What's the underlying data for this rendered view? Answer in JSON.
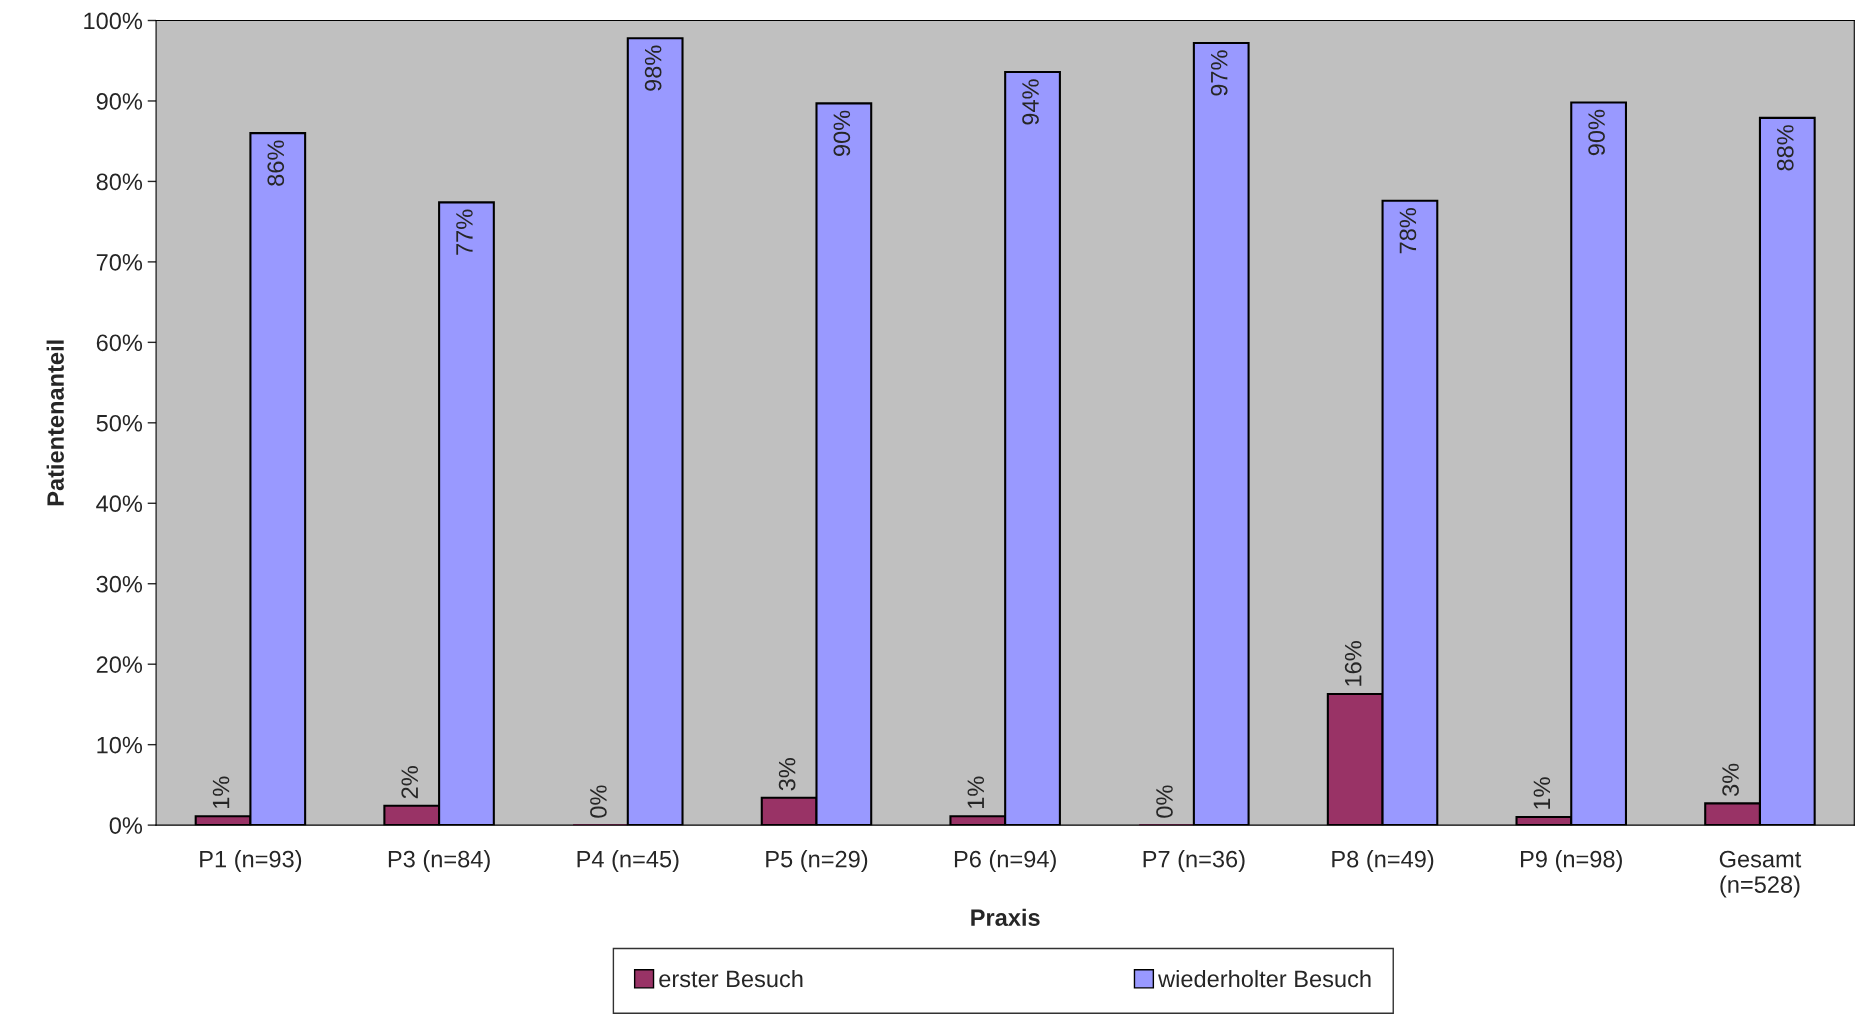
{
  "chart_data": {
    "type": "bar",
    "xlabel": "Praxis",
    "ylabel": "Patientenanteil",
    "categories": [
      "P1 (n=93)",
      "P3 (n=84)",
      "P4 (n=45)",
      "P5 (n=29)",
      "P6 (n=94)",
      "P7 (n=36)",
      "P8 (n=49)",
      "P9 (n=98)",
      "Gesamt\n(n=528)"
    ],
    "series": [
      {
        "name": "erster Besuch",
        "color": "#993366",
        "values": [
          1.1,
          2.4,
          0,
          3.4,
          1.1,
          0,
          16.3,
          1.0,
          2.7
        ],
        "value_labels": [
          "1%",
          "2%",
          "0%",
          "3%",
          "1%",
          "0%",
          "16%",
          "1%",
          "3%"
        ]
      },
      {
        "name": "wiederholter Besuch",
        "color": "#9999ff",
        "values": [
          86.0,
          77.4,
          97.8,
          89.7,
          93.6,
          97.2,
          77.6,
          89.8,
          87.9
        ],
        "value_labels": [
          "86%",
          "77%",
          "98%",
          "90%",
          "94%",
          "97%",
          "78%",
          "90%",
          "88%"
        ]
      }
    ],
    "ylim": [
      0,
      100
    ],
    "yticks": [
      {
        "value": 0,
        "label": "0%"
      },
      {
        "value": 10,
        "label": "10%"
      },
      {
        "value": 20,
        "label": "20%"
      },
      {
        "value": 30,
        "label": "30%"
      },
      {
        "value": 40,
        "label": "40%"
      },
      {
        "value": 50,
        "label": "50%"
      },
      {
        "value": 60,
        "label": "60%"
      },
      {
        "value": 70,
        "label": "70%"
      },
      {
        "value": 80,
        "label": "80%"
      },
      {
        "value": 90,
        "label": "90%"
      },
      {
        "value": 100,
        "label": "100%"
      }
    ],
    "grid": false,
    "legend": "bottom"
  }
}
